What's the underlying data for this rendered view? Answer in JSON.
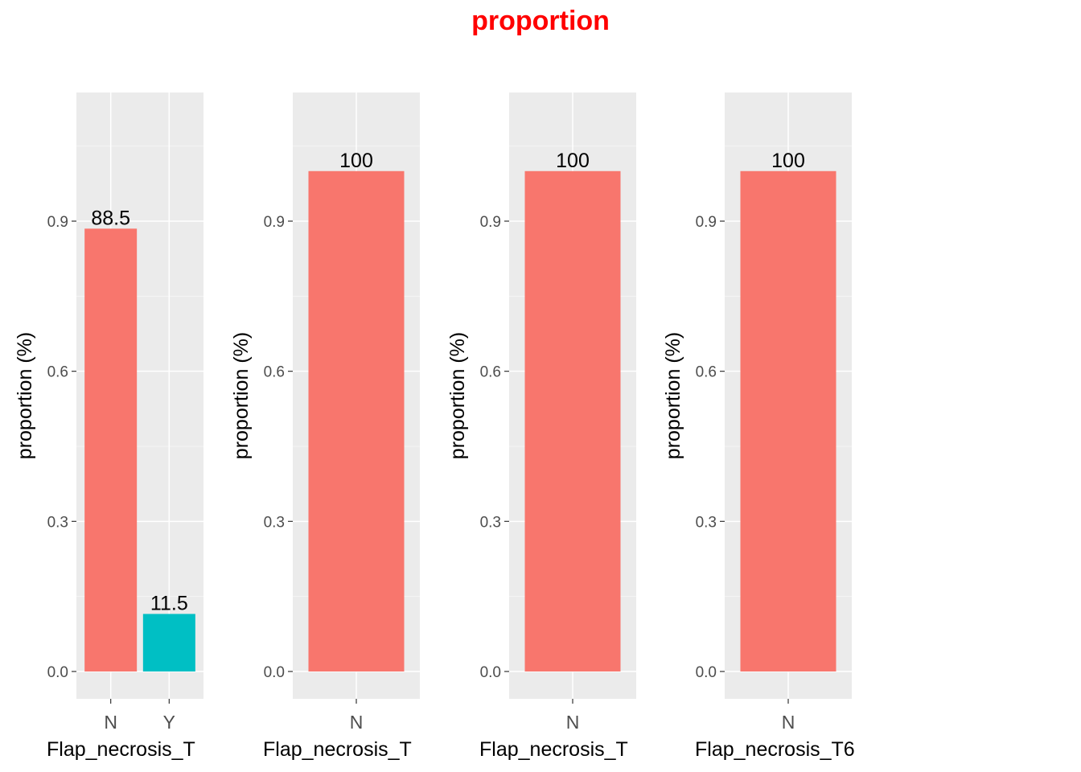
{
  "title": "proportion",
  "colors": {
    "panel_bg": "#ebebeb",
    "grid_major": "#ffffff",
    "grid_minor": "#f5f5f5",
    "N": "#f8766d",
    "Y": "#00bfc4",
    "tick": "#333333"
  },
  "chart_data": [
    {
      "type": "bar",
      "categories": [
        "N",
        "Y"
      ],
      "values": [
        0.885,
        0.115
      ],
      "data_labels": [
        "88.5",
        "11.5"
      ],
      "xlabel": "Flap_necrosis_T",
      "ylabel": "proportion (%)",
      "ylim": [
        -0.05,
        1.15
      ],
      "yticks": [
        "0.0",
        "0.3",
        "0.6",
        "0.9"
      ],
      "grid": true,
      "legend": "none"
    },
    {
      "type": "bar",
      "categories": [
        "N"
      ],
      "values": [
        1.0
      ],
      "data_labels": [
        "100"
      ],
      "xlabel": "Flap_necrosis_T",
      "ylabel": "proportion (%)",
      "ylim": [
        -0.05,
        1.15
      ],
      "yticks": [
        "0.0",
        "0.3",
        "0.6",
        "0.9"
      ],
      "grid": true,
      "legend": "none"
    },
    {
      "type": "bar",
      "categories": [
        "N"
      ],
      "values": [
        1.0
      ],
      "data_labels": [
        "100"
      ],
      "xlabel": "Flap_necrosis_T",
      "ylabel": "proportion (%)",
      "ylim": [
        -0.05,
        1.15
      ],
      "yticks": [
        "0.0",
        "0.3",
        "0.6",
        "0.9"
      ],
      "grid": true,
      "legend": "none"
    },
    {
      "type": "bar",
      "categories": [
        "N"
      ],
      "values": [
        1.0
      ],
      "data_labels": [
        "100"
      ],
      "xlabel": "Flap_necrosis_T6",
      "ylabel": "proportion (%)",
      "ylim": [
        -0.05,
        1.15
      ],
      "yticks": [
        "0.0",
        "0.3",
        "0.6",
        "0.9"
      ],
      "grid": true,
      "legend": "none"
    }
  ]
}
